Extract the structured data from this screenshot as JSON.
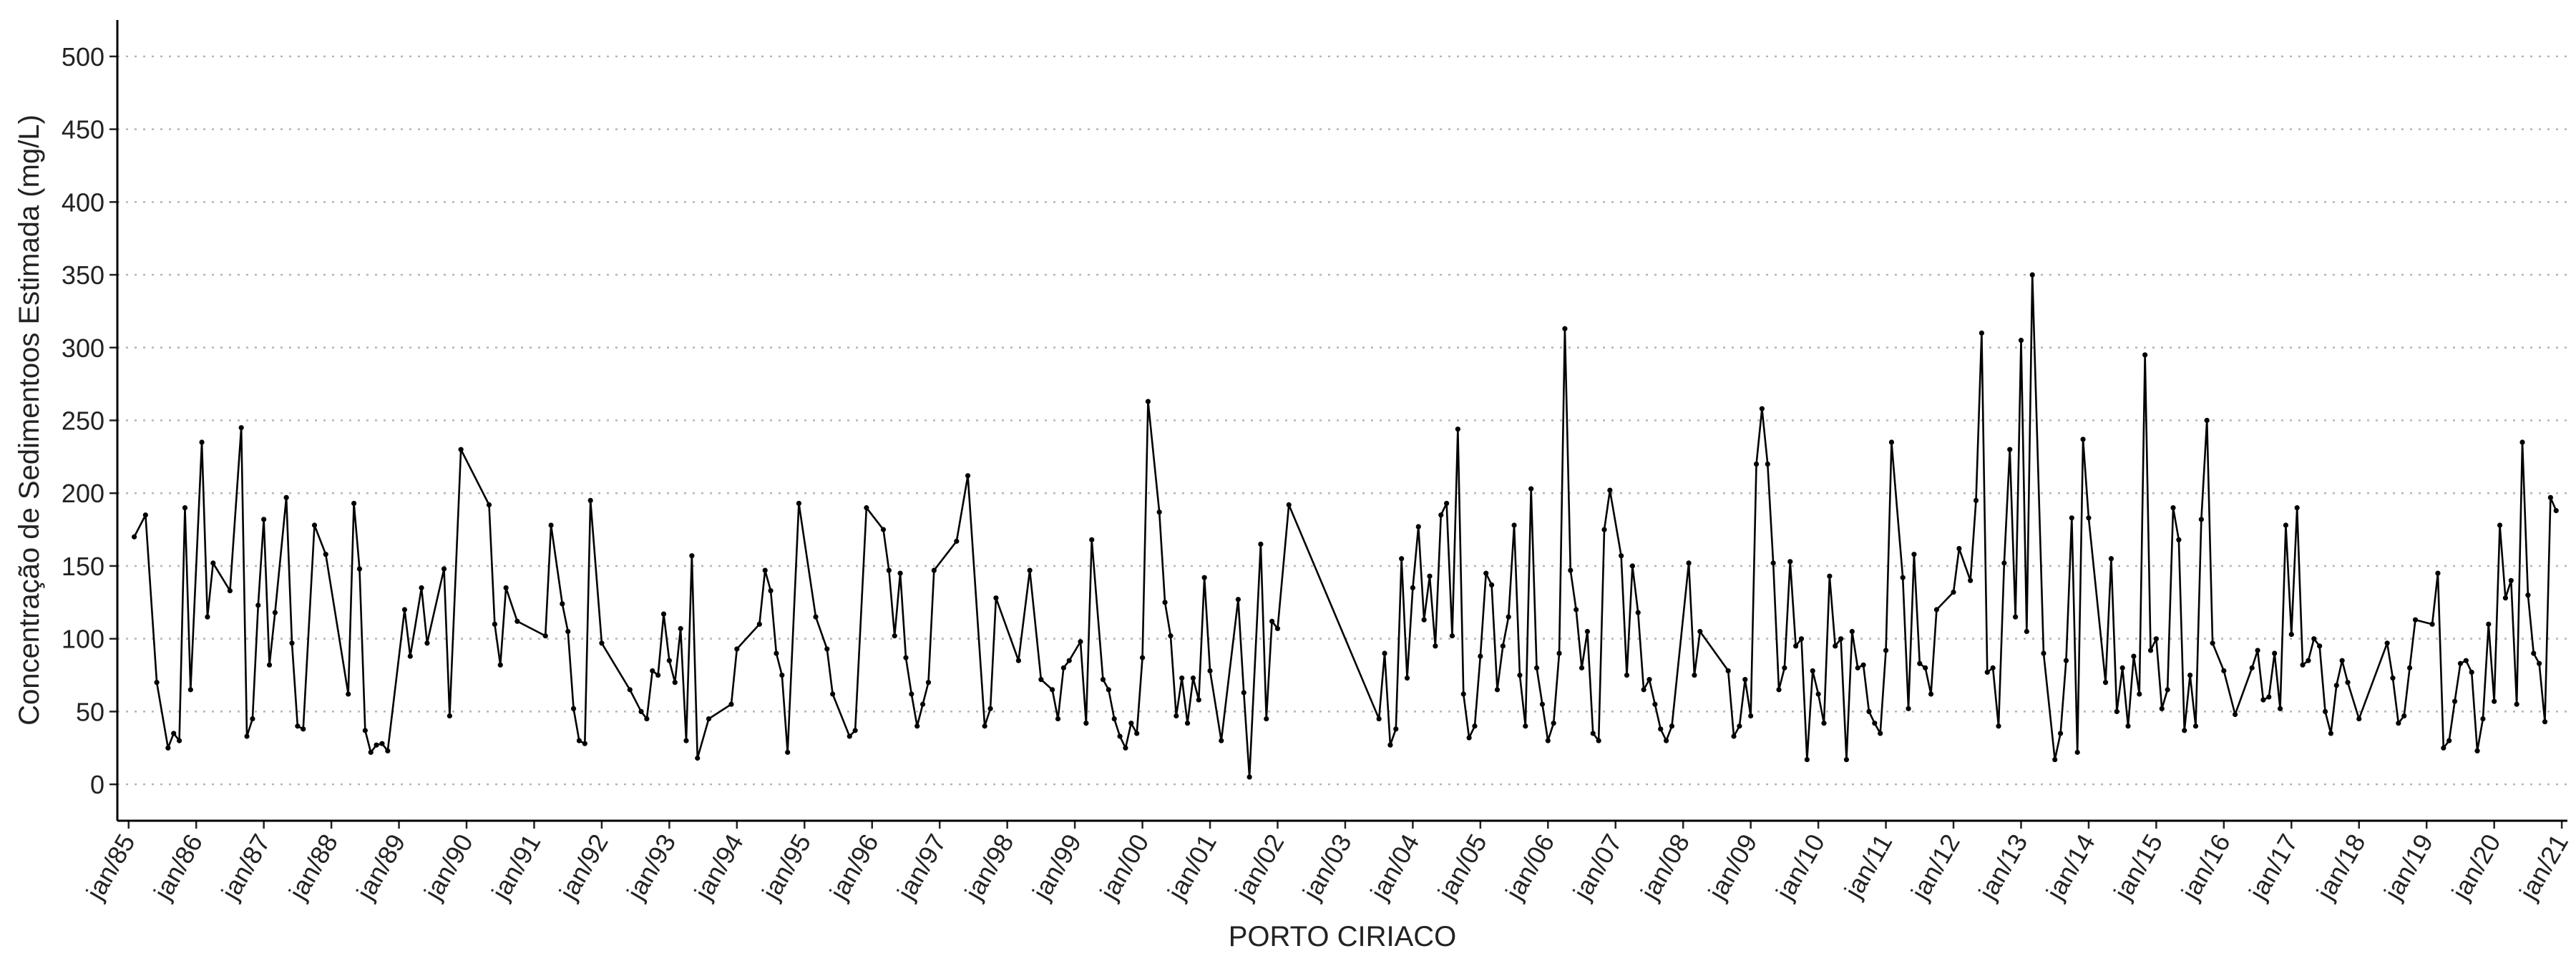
{
  "chart_data": {
    "type": "line",
    "x_label": "PORTO CIRIACO",
    "y_label": "Concentração de Sedimentoos Estimada (mg/L)",
    "color": "#000000",
    "grid": true,
    "ylim": [
      -25,
      525
    ],
    "yticks": [
      0,
      50,
      100,
      150,
      200,
      250,
      300,
      350,
      400,
      450,
      500
    ],
    "xlim": [
      "1984-11",
      "2021-02"
    ],
    "xticks": [
      {
        "value": "1985-01",
        "label": "jan/85"
      },
      {
        "value": "1986-01",
        "label": "jan/86"
      },
      {
        "value": "1987-01",
        "label": "jan/87"
      },
      {
        "value": "1988-01",
        "label": "jan/88"
      },
      {
        "value": "1989-01",
        "label": "jan/89"
      },
      {
        "value": "1990-01",
        "label": "jan/90"
      },
      {
        "value": "1991-01",
        "label": "jan/91"
      },
      {
        "value": "1992-01",
        "label": "jan/92"
      },
      {
        "value": "1993-01",
        "label": "jan/93"
      },
      {
        "value": "1994-01",
        "label": "jan/94"
      },
      {
        "value": "1995-01",
        "label": "jan/95"
      },
      {
        "value": "1996-01",
        "label": "jan/96"
      },
      {
        "value": "1997-01",
        "label": "jan/97"
      },
      {
        "value": "1998-01",
        "label": "jan/98"
      },
      {
        "value": "1999-01",
        "label": "jan/99"
      },
      {
        "value": "2000-01",
        "label": "jan/00"
      },
      {
        "value": "2001-01",
        "label": "jan/01"
      },
      {
        "value": "2002-01",
        "label": "jan/02"
      },
      {
        "value": "2003-01",
        "label": "jan/03"
      },
      {
        "value": "2004-01",
        "label": "jan/04"
      },
      {
        "value": "2005-01",
        "label": "jan/05"
      },
      {
        "value": "2006-01",
        "label": "jan/06"
      },
      {
        "value": "2007-01",
        "label": "jan/07"
      },
      {
        "value": "2008-01",
        "label": "jan/08"
      },
      {
        "value": "2009-01",
        "label": "jan/09"
      },
      {
        "value": "2010-01",
        "label": "jan/10"
      },
      {
        "value": "2011-01",
        "label": "jan/11"
      },
      {
        "value": "2012-01",
        "label": "jan/12"
      },
      {
        "value": "2013-01",
        "label": "jan/13"
      },
      {
        "value": "2014-01",
        "label": "jan/14"
      },
      {
        "value": "2015-01",
        "label": "jan/15"
      },
      {
        "value": "2016-01",
        "label": "jan/16"
      },
      {
        "value": "2017-01",
        "label": "jan/17"
      },
      {
        "value": "2018-01",
        "label": "jan/18"
      },
      {
        "value": "2019-01",
        "label": "jan/19"
      },
      {
        "value": "2020-01",
        "label": "jan/20"
      },
      {
        "value": "2021-01",
        "label": "jan/21"
      }
    ],
    "x": [
      "1985-02",
      "1985-04",
      "1985-06",
      "1985-08",
      "1985-09",
      "1985-10",
      "1985-11",
      "1985-12",
      "1986-02",
      "1986-03",
      "1986-04",
      "1986-07",
      "1986-09",
      "1986-10",
      "1986-11",
      "1986-12",
      "1987-01",
      "1987-02",
      "1987-03",
      "1987-05",
      "1987-06",
      "1987-07",
      "1987-08",
      "1987-10",
      "1987-12",
      "1988-04",
      "1988-05",
      "1988-06",
      "1988-07",
      "1988-08",
      "1988-09",
      "1988-10",
      "1988-11",
      "1989-02",
      "1989-03",
      "1989-05",
      "1989-06",
      "1989-09",
      "1989-10",
      "1989-12",
      "1990-05",
      "1990-06",
      "1990-07",
      "1990-08",
      "1990-10",
      "1991-03",
      "1991-04",
      "1991-06",
      "1991-07",
      "1991-08",
      "1991-09",
      "1991-10",
      "1991-11",
      "1992-01",
      "1992-06",
      "1992-08",
      "1992-09",
      "1992-10",
      "1992-11",
      "1992-12",
      "1993-01",
      "1993-02",
      "1993-03",
      "1993-04",
      "1993-05",
      "1993-06",
      "1993-08",
      "1993-12",
      "1994-01",
      "1994-05",
      "1994-06",
      "1994-07",
      "1994-08",
      "1994-09",
      "1994-10",
      "1994-12",
      "1995-03",
      "1995-05",
      "1995-06",
      "1995-09",
      "1995-10",
      "1995-12",
      "1996-03",
      "1996-04",
      "1996-05",
      "1996-06",
      "1996-07",
      "1996-08",
      "1996-09",
      "1996-10",
      "1996-11",
      "1996-12",
      "1997-04",
      "1997-06",
      "1997-09",
      "1997-10",
      "1997-11",
      "1998-03",
      "1998-05",
      "1998-07",
      "1998-09",
      "1998-10",
      "1998-11",
      "1998-12",
      "1999-02",
      "1999-03",
      "1999-04",
      "1999-06",
      "1999-07",
      "1999-08",
      "1999-09",
      "1999-10",
      "1999-11",
      "1999-12",
      "2000-01",
      "2000-02",
      "2000-04",
      "2000-05",
      "2000-06",
      "2000-07",
      "2000-08",
      "2000-09",
      "2000-10",
      "2000-11",
      "2000-12",
      "2001-01",
      "2001-03",
      "2001-06",
      "2001-07",
      "2001-08",
      "2001-10",
      "2001-11",
      "2001-12",
      "2002-01",
      "2002-03",
      "2003-07",
      "2003-08",
      "2003-09",
      "2003-10",
      "2003-11",
      "2003-12",
      "2004-01",
      "2004-02",
      "2004-03",
      "2004-04",
      "2004-05",
      "2004-06",
      "2004-07",
      "2004-08",
      "2004-09",
      "2004-10",
      "2004-11",
      "2004-12",
      "2005-01",
      "2005-02",
      "2005-03",
      "2005-04",
      "2005-05",
      "2005-06",
      "2005-07",
      "2005-08",
      "2005-09",
      "2005-10",
      "2005-11",
      "2005-12",
      "2006-01",
      "2006-02",
      "2006-03",
      "2006-04",
      "2006-05",
      "2006-06",
      "2006-07",
      "2006-08",
      "2006-09",
      "2006-10",
      "2006-11",
      "2006-12",
      "2007-02",
      "2007-03",
      "2007-04",
      "2007-05",
      "2007-06",
      "2007-07",
      "2007-08",
      "2007-09",
      "2007-10",
      "2007-11",
      "2008-02",
      "2008-03",
      "2008-04",
      "2008-09",
      "2008-10",
      "2008-11",
      "2008-12",
      "2009-01",
      "2009-02",
      "2009-03",
      "2009-04",
      "2009-05",
      "2009-06",
      "2009-07",
      "2009-08",
      "2009-09",
      "2009-10",
      "2009-11",
      "2009-12",
      "2010-01",
      "2010-02",
      "2010-03",
      "2010-04",
      "2010-05",
      "2010-06",
      "2010-07",
      "2010-08",
      "2010-09",
      "2010-10",
      "2010-11",
      "2010-12",
      "2011-01",
      "2011-02",
      "2011-04",
      "2011-05",
      "2011-06",
      "2011-07",
      "2011-08",
      "2011-09",
      "2011-10",
      "2012-01",
      "2012-02",
      "2012-04",
      "2012-05",
      "2012-06",
      "2012-07",
      "2012-08",
      "2012-09",
      "2012-10",
      "2012-11",
      "2012-12",
      "2013-01",
      "2013-02",
      "2013-03",
      "2013-05",
      "2013-07",
      "2013-08",
      "2013-09",
      "2013-10",
      "2013-11",
      "2013-12",
      "2014-01",
      "2014-04",
      "2014-05",
      "2014-06",
      "2014-07",
      "2014-08",
      "2014-09",
      "2014-10",
      "2014-11",
      "2014-12",
      "2015-01",
      "2015-02",
      "2015-03",
      "2015-04",
      "2015-05",
      "2015-06",
      "2015-07",
      "2015-08",
      "2015-09",
      "2015-10",
      "2015-11",
      "2016-01",
      "2016-03",
      "2016-06",
      "2016-07",
      "2016-08",
      "2016-09",
      "2016-10",
      "2016-11",
      "2016-12",
      "2017-01",
      "2017-02",
      "2017-03",
      "2017-04",
      "2017-05",
      "2017-06",
      "2017-07",
      "2017-08",
      "2017-09",
      "2017-10",
      "2017-11",
      "2018-01",
      "2018-06",
      "2018-07",
      "2018-08",
      "2018-09",
      "2018-10",
      "2018-11",
      "2019-02",
      "2019-03",
      "2019-04",
      "2019-05",
      "2019-06",
      "2019-07",
      "2019-08",
      "2019-09",
      "2019-10",
      "2019-11",
      "2019-12",
      "2020-01",
      "2020-02",
      "2020-03",
      "2020-04",
      "2020-05",
      "2020-06",
      "2020-07",
      "2020-08",
      "2020-09",
      "2020-10",
      "2020-11",
      "2020-12"
    ],
    "values": [
      170,
      185,
      70,
      25,
      35,
      30,
      190,
      65,
      235,
      115,
      152,
      133,
      245,
      33,
      45,
      123,
      182,
      82,
      118,
      197,
      97,
      40,
      38,
      178,
      158,
      62,
      193,
      148,
      37,
      22,
      27,
      28,
      23,
      120,
      88,
      135,
      97,
      148,
      47,
      230,
      192,
      110,
      82,
      135,
      112,
      102,
      178,
      124,
      105,
      52,
      30,
      28,
      195,
      97,
      65,
      50,
      45,
      78,
      75,
      117,
      85,
      70,
      107,
      30,
      157,
      18,
      45,
      55,
      93,
      110,
      147,
      133,
      90,
      75,
      22,
      193,
      115,
      93,
      62,
      33,
      37,
      190,
      175,
      147,
      102,
      145,
      87,
      62,
      40,
      55,
      70,
      147,
      167,
      212,
      40,
      52,
      128,
      85,
      147,
      72,
      65,
      45,
      80,
      85,
      98,
      42,
      168,
      72,
      65,
      45,
      33,
      25,
      42,
      35,
      87,
      263,
      187,
      125,
      102,
      47,
      73,
      42,
      73,
      58,
      142,
      78,
      30,
      127,
      63,
      5,
      165,
      45,
      112,
      107,
      192,
      45,
      90,
      27,
      38,
      155,
      73,
      135,
      177,
      113,
      143,
      95,
      185,
      193,
      102,
      244,
      62,
      32,
      40,
      88,
      145,
      137,
      65,
      95,
      115,
      178,
      75,
      40,
      203,
      80,
      55,
      30,
      42,
      90,
      313,
      147,
      120,
      80,
      105,
      35,
      30,
      175,
      202,
      157,
      75,
      150,
      118,
      65,
      72,
      55,
      38,
      30,
      40,
      152,
      75,
      105,
      78,
      33,
      40,
      72,
      47,
      220,
      258,
      220,
      152,
      65,
      80,
      153,
      95,
      100,
      17,
      78,
      62,
      42,
      143,
      95,
      100,
      17,
      105,
      80,
      82,
      50,
      42,
      35,
      92,
      235,
      142,
      52,
      158,
      83,
      80,
      62,
      120,
      132,
      162,
      140,
      195,
      310,
      77,
      80,
      40,
      152,
      230,
      115,
      305,
      105,
      350,
      90,
      17,
      35,
      85,
      183,
      22,
      237,
      183,
      70,
      155,
      50,
      80,
      40,
      88,
      62,
      295,
      92,
      100,
      52,
      65,
      190,
      168,
      37,
      75,
      40,
      182,
      250,
      97,
      78,
      48,
      80,
      92,
      58,
      60,
      90,
      52,
      178,
      103,
      190,
      82,
      85,
      100,
      95,
      50,
      35,
      68,
      85,
      70,
      45,
      97,
      73,
      42,
      47,
      80,
      113,
      110,
      145,
      25,
      30,
      57,
      83,
      85,
      77,
      23,
      45,
      110,
      57,
      178,
      128,
      140,
      55,
      235,
      130,
      90,
      83,
      43,
      197,
      188
    ]
  }
}
